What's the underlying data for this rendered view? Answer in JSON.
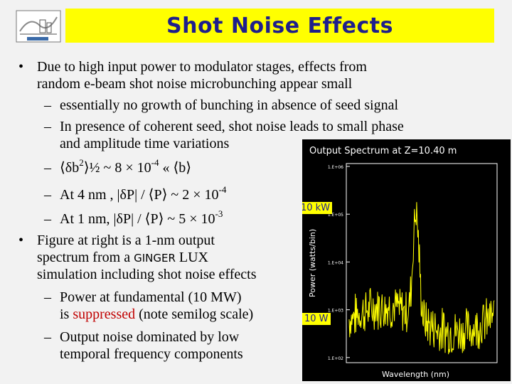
{
  "title": "Shot Noise Effects",
  "bullets": {
    "b1_line1": "Due to high input power to modulator stages, effects from",
    "b1_line2": "random e-beam shot noise microbunching appear small",
    "s1": "essentially no growth of bunching in absence of seed signal",
    "s2_line1": "In presence of coherent seed, shot noise leads to small phase",
    "s2_line2": "and amplitude time variations",
    "s3_pre": "⟨δb",
    "s3_sup1": "2",
    "s3_mid": "⟩½ ~  8 × 10",
    "s3_sup2": "-4",
    "s3_post": "  « ⟨b⟩",
    "s4_pre": "At 4 nm ,  |δP| / ⟨P⟩ ~  2 × 10",
    "s4_sup": "-4",
    "s5_pre": "At 1 nm,  |δP| / ⟨P⟩ ~  5 × 10",
    "s5_sup": "-3",
    "b2_line1": "Figure at right is a 1-nm output",
    "b2_line2_pre": "spectrum from a ",
    "b2_line2_code": "GINGER",
    "b2_line2_post": " LUX",
    "b2_line3": "simulation including shot noise effects",
    "s6_line1": "Power at fundamental (10 MW)",
    "s6_line2_pre": "is ",
    "s6_line2_red": "suppressed",
    "s6_line2_post": " (note semilog scale)",
    "s7_line1": "Output noise dominated by low",
    "s7_line2": "temporal frequency components"
  },
  "figure": {
    "plot_title": "Output Spectrum at Z=10.40 m",
    "ylabel": "Power (watts/bin)",
    "xlabel": "Wavelength (nm)",
    "yticks": [
      "1.E+06",
      "1.E+05",
      "1.E+04",
      "1.E+03",
      "1.E+02"
    ],
    "annot_high": "10 kW",
    "annot_low": "10 W",
    "colors": {
      "trace": "#ffff00",
      "axes": "#ffffff",
      "background": "#000000"
    }
  }
}
